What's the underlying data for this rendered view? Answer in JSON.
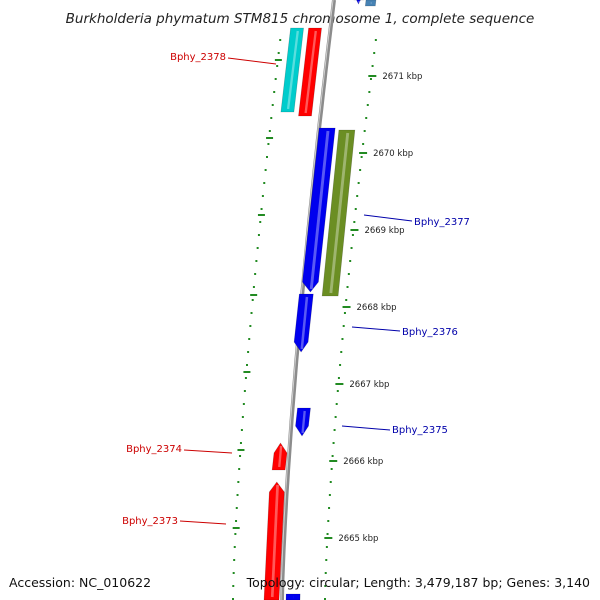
{
  "title": "Burkholderia phymatum STM815 chromosome 1, complete sequence",
  "footer": {
    "accession": "Accession: NC_010622",
    "summary": "Topology: circular; Length: 3,479,187 bp; Genes: 3,140"
  },
  "colors": {
    "backbone": "#8c8c8c",
    "ticks": "#228b22",
    "forward_label": "#cc0000",
    "reverse_label": "#0000aa",
    "gene_red": "#ff0000",
    "gene_blue": "#0000ee",
    "gene_cyan": "#00cccc",
    "gene_olive": "#6b8e23",
    "gene_steel": "#4682b4"
  },
  "scale": {
    "unit": "kbp",
    "ticks": [
      {
        "kbp": 2671,
        "label": "2671 kbp"
      },
      {
        "kbp": 2670,
        "label": "2670 kbp"
      },
      {
        "kbp": 2669,
        "label": "2669 kbp"
      },
      {
        "kbp": 2668,
        "label": "2668 kbp"
      },
      {
        "kbp": 2667,
        "label": "2667 kbp"
      },
      {
        "kbp": 2666,
        "label": "2666 kbp"
      },
      {
        "kbp": 2665,
        "label": "2665 kbp"
      }
    ]
  },
  "gene_labels": [
    {
      "name": "Bphy_2378",
      "strand": "forward"
    },
    {
      "name": "Bphy_2377",
      "strand": "reverse"
    },
    {
      "name": "Bphy_2376",
      "strand": "reverse"
    },
    {
      "name": "Bphy_2375",
      "strand": "reverse"
    },
    {
      "name": "Bphy_2374",
      "strand": "forward"
    },
    {
      "name": "Bphy_2373",
      "strand": "forward"
    }
  ]
}
